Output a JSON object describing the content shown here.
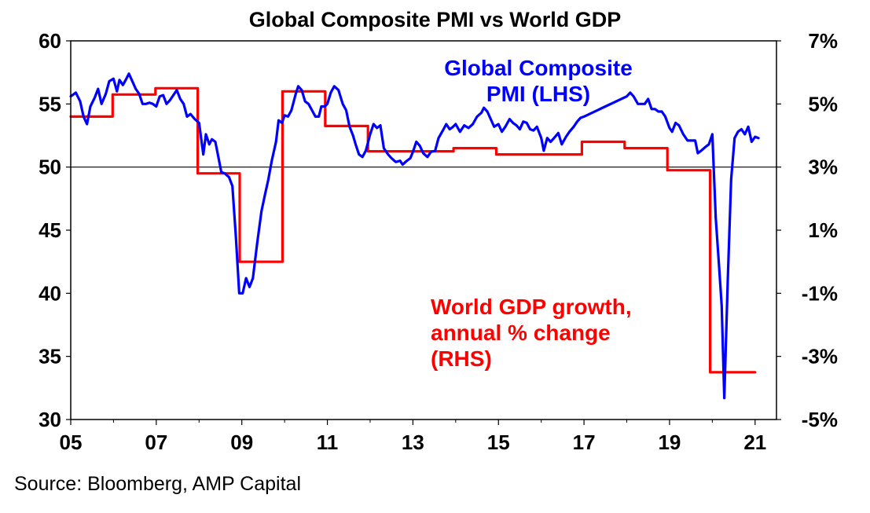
{
  "chart_data": {
    "type": "line",
    "title": "Global Composite PMI vs World GDP",
    "source": "Source: Bloomberg, AMP Capital",
    "x_range": [
      2005.0,
      2021.5
    ],
    "x_tick_labels": [
      "05",
      "07",
      "09",
      "11",
      "13",
      "15",
      "17",
      "19",
      "21"
    ],
    "x_ticks": [
      2005,
      2007,
      2009,
      2011,
      2013,
      2015,
      2017,
      2019,
      2021
    ],
    "y_left": {
      "range": [
        30,
        60
      ],
      "ticks": [
        30,
        35,
        40,
        45,
        50,
        55,
        60
      ],
      "tick_labels": [
        "30",
        "35",
        "40",
        "45",
        "50",
        "55",
        "60"
      ]
    },
    "y_right": {
      "range": [
        -5,
        7
      ],
      "ticks": [
        -5,
        -3,
        -1,
        1,
        3,
        5,
        7
      ],
      "tick_labels": [
        "-5%",
        "-3%",
        "-1%",
        "1%",
        "3%",
        "5%",
        "7%"
      ]
    },
    "reference_line": {
      "axis": "left",
      "value": 50
    },
    "grid": false,
    "series": [
      {
        "name": "Global Composite PMI (LHS)",
        "label_lines": [
          "Global Composite",
          "PMI (LHS)"
        ],
        "axis": "left",
        "color": "#0000ff",
        "points": [
          [
            2005.0,
            55.6
          ],
          [
            2005.12,
            55.9
          ],
          [
            2005.22,
            55.2
          ],
          [
            2005.3,
            54.0
          ],
          [
            2005.38,
            53.4
          ],
          [
            2005.46,
            54.8
          ],
          [
            2005.56,
            55.5
          ],
          [
            2005.64,
            56.2
          ],
          [
            2005.72,
            55.0
          ],
          [
            2005.82,
            55.8
          ],
          [
            2005.9,
            56.8
          ],
          [
            2006.0,
            57.0
          ],
          [
            2006.08,
            56.0
          ],
          [
            2006.14,
            56.9
          ],
          [
            2006.22,
            56.5
          ],
          [
            2006.3,
            57.0
          ],
          [
            2006.36,
            57.4
          ],
          [
            2006.44,
            56.8
          ],
          [
            2006.52,
            56.2
          ],
          [
            2006.6,
            55.8
          ],
          [
            2006.68,
            55.0
          ],
          [
            2006.76,
            55.0
          ],
          [
            2006.84,
            55.1
          ],
          [
            2006.92,
            55.0
          ],
          [
            2007.0,
            54.8
          ],
          [
            2007.08,
            55.6
          ],
          [
            2007.16,
            55.7
          ],
          [
            2007.24,
            55.0
          ],
          [
            2007.32,
            55.3
          ],
          [
            2007.42,
            55.8
          ],
          [
            2007.48,
            56.1
          ],
          [
            2007.56,
            55.4
          ],
          [
            2007.64,
            55.0
          ],
          [
            2007.72,
            54.0
          ],
          [
            2007.8,
            54.2
          ],
          [
            2007.9,
            53.8
          ],
          [
            2008.0,
            53.5
          ],
          [
            2008.1,
            51.0
          ],
          [
            2008.16,
            52.6
          ],
          [
            2008.24,
            51.8
          ],
          [
            2008.3,
            52.2
          ],
          [
            2008.38,
            52.0
          ],
          [
            2008.44,
            51.0
          ],
          [
            2008.52,
            49.6
          ],
          [
            2008.6,
            49.5
          ],
          [
            2008.7,
            49.2
          ],
          [
            2008.78,
            48.5
          ],
          [
            2008.86,
            44.5
          ],
          [
            2008.94,
            40.0
          ],
          [
            2009.02,
            40.0
          ],
          [
            2009.1,
            41.2
          ],
          [
            2009.18,
            40.5
          ],
          [
            2009.26,
            41.2
          ],
          [
            2009.36,
            44.0
          ],
          [
            2009.46,
            46.5
          ],
          [
            2009.54,
            47.8
          ],
          [
            2009.62,
            49.0
          ],
          [
            2009.7,
            50.5
          ],
          [
            2009.8,
            52.0
          ],
          [
            2009.86,
            53.7
          ],
          [
            2009.94,
            53.5
          ],
          [
            2010.0,
            54.1
          ],
          [
            2010.08,
            54.0
          ],
          [
            2010.16,
            54.5
          ],
          [
            2010.26,
            55.8
          ],
          [
            2010.32,
            56.4
          ],
          [
            2010.4,
            56.1
          ],
          [
            2010.48,
            55.2
          ],
          [
            2010.56,
            55.0
          ],
          [
            2010.64,
            54.5
          ],
          [
            2010.72,
            54.0
          ],
          [
            2010.8,
            54.0
          ],
          [
            2010.86,
            54.8
          ],
          [
            2010.94,
            54.8
          ],
          [
            2011.0,
            55.0
          ],
          [
            2011.08,
            55.9
          ],
          [
            2011.16,
            56.4
          ],
          [
            2011.26,
            56.1
          ],
          [
            2011.36,
            55.0
          ],
          [
            2011.44,
            54.5
          ],
          [
            2011.52,
            53.2
          ],
          [
            2011.6,
            52.5
          ],
          [
            2011.66,
            51.8
          ],
          [
            2011.74,
            51.0
          ],
          [
            2011.82,
            50.8
          ],
          [
            2011.9,
            51.3
          ],
          [
            2012.0,
            52.6
          ],
          [
            2012.08,
            53.4
          ],
          [
            2012.16,
            53.1
          ],
          [
            2012.24,
            53.3
          ],
          [
            2012.32,
            51.5
          ],
          [
            2012.42,
            51.0
          ],
          [
            2012.5,
            50.7
          ],
          [
            2012.6,
            50.4
          ],
          [
            2012.7,
            50.5
          ],
          [
            2012.76,
            50.2
          ],
          [
            2012.86,
            50.5
          ],
          [
            2012.94,
            50.7
          ],
          [
            2013.0,
            51.2
          ],
          [
            2013.08,
            52.0
          ],
          [
            2013.16,
            51.7
          ],
          [
            2013.24,
            51.1
          ],
          [
            2013.34,
            50.8
          ],
          [
            2013.42,
            51.2
          ],
          [
            2013.52,
            51.3
          ],
          [
            2013.6,
            52.3
          ],
          [
            2013.7,
            52.9
          ],
          [
            2013.78,
            53.4
          ],
          [
            2013.86,
            53.0
          ],
          [
            2013.94,
            53.2
          ],
          [
            2014.0,
            53.4
          ],
          [
            2014.1,
            52.8
          ],
          [
            2014.2,
            53.3
          ],
          [
            2014.3,
            53.1
          ],
          [
            2014.4,
            53.4
          ],
          [
            2014.5,
            54.0
          ],
          [
            2014.6,
            54.3
          ],
          [
            2014.66,
            54.7
          ],
          [
            2014.74,
            54.4
          ],
          [
            2014.82,
            53.8
          ],
          [
            2014.9,
            53.2
          ],
          [
            2015.0,
            53.4
          ],
          [
            2015.08,
            52.8
          ],
          [
            2015.16,
            53.2
          ],
          [
            2015.26,
            53.8
          ],
          [
            2015.34,
            53.5
          ],
          [
            2015.42,
            53.3
          ],
          [
            2015.5,
            53.0
          ],
          [
            2015.58,
            53.6
          ],
          [
            2015.66,
            53.5
          ],
          [
            2015.74,
            53.0
          ],
          [
            2015.82,
            52.9
          ],
          [
            2015.9,
            53.2
          ],
          [
            2016.0,
            52.3
          ],
          [
            2016.06,
            51.3
          ],
          [
            2016.14,
            52.3
          ],
          [
            2016.22,
            52.0
          ],
          [
            2016.3,
            52.3
          ],
          [
            2016.4,
            52.7
          ],
          [
            2016.48,
            51.8
          ],
          [
            2016.58,
            52.4
          ],
          [
            2016.66,
            52.8
          ],
          [
            2016.76,
            53.2
          ],
          [
            2016.84,
            53.6
          ],
          [
            2016.92,
            53.9
          ],
          [
            2017.0,
            54.0
          ],
          [
            2017.5,
            54.8
          ],
          [
            2018.0,
            55.6
          ],
          [
            2018.08,
            55.9
          ],
          [
            2018.16,
            55.6
          ],
          [
            2018.26,
            55.0
          ],
          [
            2018.34,
            55.0
          ],
          [
            2018.42,
            55.0
          ],
          [
            2018.5,
            55.4
          ],
          [
            2018.58,
            54.6
          ],
          [
            2018.66,
            54.6
          ],
          [
            2018.74,
            54.4
          ],
          [
            2018.82,
            54.4
          ],
          [
            2018.9,
            54.0
          ],
          [
            2019.0,
            53.1
          ],
          [
            2019.06,
            52.8
          ],
          [
            2019.14,
            53.5
          ],
          [
            2019.22,
            53.3
          ],
          [
            2019.32,
            52.6
          ],
          [
            2019.42,
            52.1
          ],
          [
            2019.5,
            52.1
          ],
          [
            2019.6,
            52.1
          ],
          [
            2019.66,
            51.1
          ],
          [
            2019.74,
            51.3
          ],
          [
            2019.84,
            51.6
          ],
          [
            2019.92,
            51.8
          ],
          [
            2020.0,
            52.6
          ],
          [
            2020.08,
            46.0
          ],
          [
            2020.16,
            42.0
          ],
          [
            2020.22,
            39.0
          ],
          [
            2020.28,
            31.7
          ],
          [
            2020.36,
            41.0
          ],
          [
            2020.44,
            49.0
          ],
          [
            2020.52,
            52.3
          ],
          [
            2020.6,
            52.8
          ],
          [
            2020.68,
            53.0
          ],
          [
            2020.76,
            52.6
          ],
          [
            2020.84,
            53.2
          ],
          [
            2020.92,
            52.0
          ],
          [
            2021.0,
            52.4
          ],
          [
            2021.08,
            52.3
          ]
        ]
      },
      {
        "name": "World GDP growth, annual % change (RHS)",
        "label_lines": [
          "World GDP growth,",
          "annual % change",
          "(RHS)"
        ],
        "axis": "right",
        "color": "#ff0000",
        "points": [
          [
            2005.0,
            4.6
          ],
          [
            2005.98,
            4.6
          ],
          [
            2005.98,
            5.3
          ],
          [
            2006.98,
            5.3
          ],
          [
            2006.98,
            5.5
          ],
          [
            2007.97,
            5.5
          ],
          [
            2007.97,
            2.8
          ],
          [
            2008.95,
            2.8
          ],
          [
            2008.95,
            0.0
          ],
          [
            2009.95,
            0.0
          ],
          [
            2009.95,
            5.4
          ],
          [
            2010.95,
            5.4
          ],
          [
            2010.95,
            4.3
          ],
          [
            2011.95,
            4.3
          ],
          [
            2011.95,
            3.5
          ],
          [
            2013.95,
            3.5
          ],
          [
            2013.95,
            3.6
          ],
          [
            2014.95,
            3.6
          ],
          [
            2014.95,
            3.4
          ],
          [
            2016.95,
            3.4
          ],
          [
            2016.95,
            3.8
          ],
          [
            2017.95,
            3.8
          ],
          [
            2017.95,
            3.6
          ],
          [
            2018.95,
            3.6
          ],
          [
            2018.95,
            2.9
          ],
          [
            2019.95,
            2.9
          ],
          [
            2019.95,
            -3.5
          ],
          [
            2021.0,
            -3.5
          ]
        ]
      }
    ]
  }
}
